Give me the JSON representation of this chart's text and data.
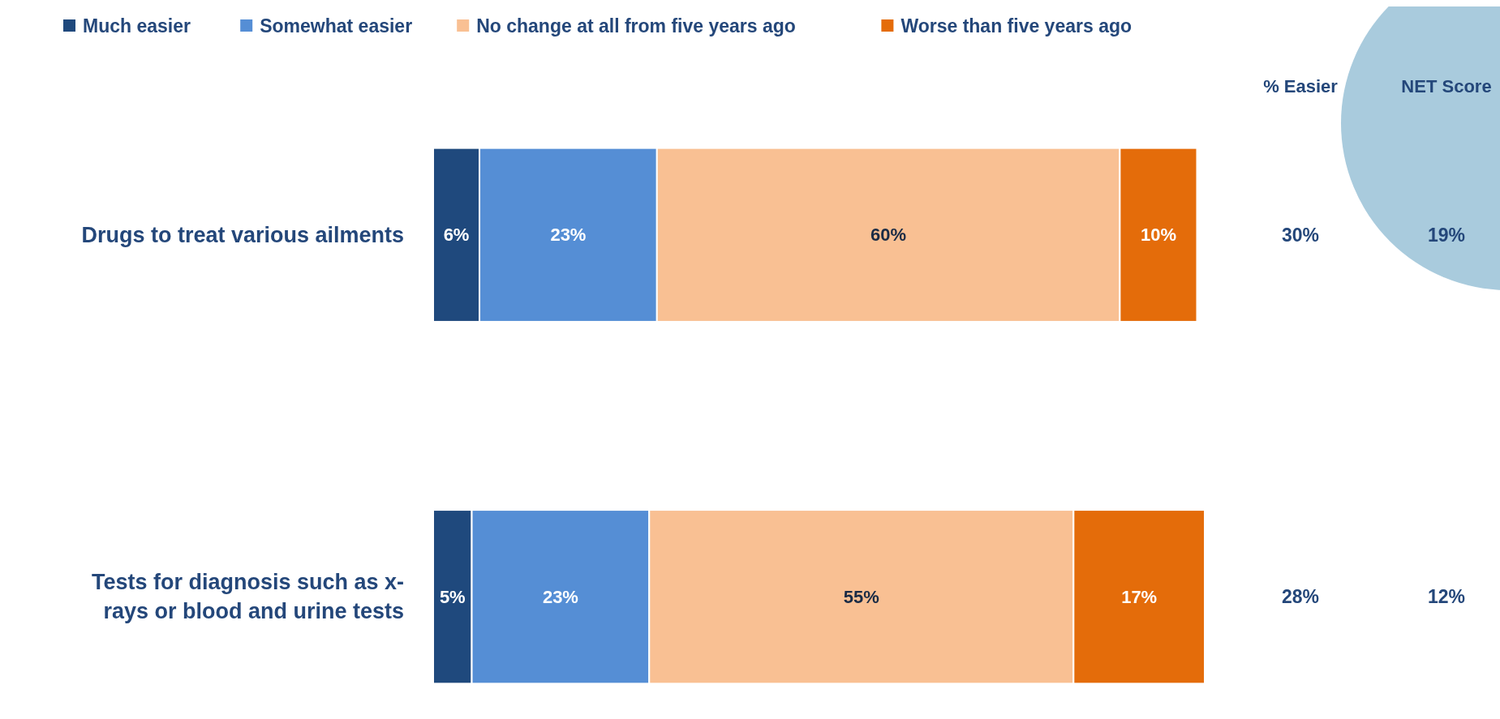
{
  "chart_data": {
    "type": "bar",
    "orientation": "horizontal",
    "stacked": true,
    "legend": "top",
    "categories": [
      "Drugs to treat various ailments",
      "Tests for diagnosis such as x-rays or blood and urine tests"
    ],
    "series": [
      {
        "name": "Much easier",
        "color": "#1f497d",
        "values": [
          6,
          5
        ],
        "value_labels": [
          "6%",
          "5%"
        ]
      },
      {
        "name": "Somewhat easier",
        "color": "#558ed5",
        "values": [
          23,
          23
        ],
        "value_labels": [
          "23%",
          "23%"
        ]
      },
      {
        "name": "No change at all from five years ago",
        "color": "#f9c093",
        "values": [
          60,
          55
        ],
        "value_labels": [
          "60%",
          "55%"
        ]
      },
      {
        "name": "Worse than five years ago",
        "color": "#e46c0a",
        "values": [
          10,
          17
        ],
        "value_labels": [
          "10%",
          "17%"
        ]
      }
    ],
    "annotations": [
      "% Easier",
      "NET Score",
      "30%",
      "19%",
      "28%",
      "12%"
    ]
  }
}
